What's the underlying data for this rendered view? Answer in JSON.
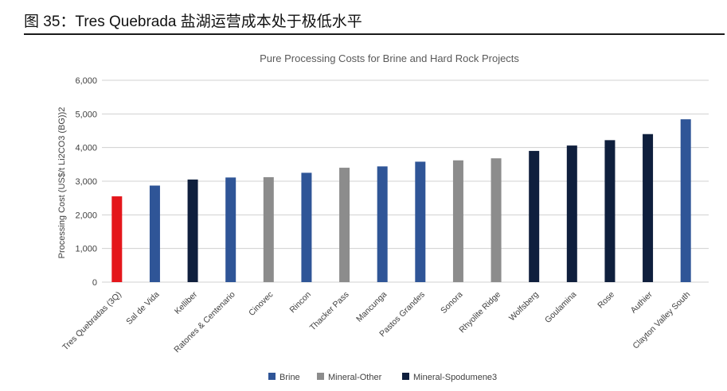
{
  "figure_caption": "图 35：Tres Quebrada 盐湖运营成本处于极低水平",
  "colors": {
    "Brine": "#2f5597",
    "Mineral-Other": "#8c8c8c",
    "Mineral-Spodumene3": "#0f1f3d",
    "highlight": "#e4161b"
  },
  "chart_data": {
    "type": "bar",
    "title": "Pure Processing Costs for Brine and Hard Rock Projects",
    "xlabel": "",
    "ylabel": "Processing Cost (US$/t Li2CO3 (BG))2",
    "ylim": [
      0,
      6000
    ],
    "yticks": [
      0,
      1000,
      2000,
      3000,
      4000,
      5000,
      6000
    ],
    "ytick_labels": [
      "0",
      "1,000",
      "2,000",
      "3,000",
      "4,000",
      "5,000",
      "6,000"
    ],
    "grid": true,
    "legend_position": "bottom",
    "legend": [
      "Brine",
      "Mineral-Other",
      "Mineral-Spodumene3"
    ],
    "bars": [
      {
        "label": "Tres Quebradas (3Q)",
        "value": 2550,
        "group": "highlight"
      },
      {
        "label": "Sal de Vida",
        "value": 2870,
        "group": "Brine"
      },
      {
        "label": "Kelliber",
        "value": 3050,
        "group": "Mineral-Spodumene3"
      },
      {
        "label": "Ratones & Centenario",
        "value": 3110,
        "group": "Brine"
      },
      {
        "label": "Cinovec",
        "value": 3120,
        "group": "Mineral-Other"
      },
      {
        "label": "Rincon",
        "value": 3250,
        "group": "Brine"
      },
      {
        "label": "Thacker Pass",
        "value": 3400,
        "group": "Mineral-Other"
      },
      {
        "label": "Mancunga",
        "value": 3440,
        "group": "Brine"
      },
      {
        "label": "Pastos Grandes",
        "value": 3580,
        "group": "Brine"
      },
      {
        "label": "Sonora",
        "value": 3620,
        "group": "Mineral-Other"
      },
      {
        "label": "Rhyolite Ridge",
        "value": 3680,
        "group": "Mineral-Other"
      },
      {
        "label": "Wolfsberg",
        "value": 3900,
        "group": "Mineral-Spodumene3"
      },
      {
        "label": "Goulamina",
        "value": 4060,
        "group": "Mineral-Spodumene3"
      },
      {
        "label": "Rose",
        "value": 4220,
        "group": "Mineral-Spodumene3"
      },
      {
        "label": "Authier",
        "value": 4400,
        "group": "Mineral-Spodumene3"
      },
      {
        "label": "Clayton Valley South",
        "value": 4840,
        "group": "Brine"
      }
    ]
  }
}
